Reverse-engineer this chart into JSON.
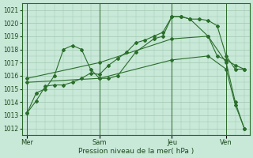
{
  "xlabel": "Pression niveau de la mer( hPa )",
  "ylim": [
    1011.5,
    1021.5
  ],
  "yticks": [
    1012,
    1013,
    1014,
    1015,
    1016,
    1017,
    1018,
    1019,
    1020,
    1021
  ],
  "bg_color": "#c8e8d8",
  "plot_bg_color": "#c8e8d8",
  "grid_color": "#a0c8b0",
  "line_color": "#2a6e2a",
  "xtick_labels": [
    "Mer",
    "Sam",
    "Jeu",
    "Ven"
  ],
  "xtick_positions": [
    0,
    4,
    8,
    11
  ],
  "xlim": [
    -0.3,
    12.3
  ],
  "lines": [
    {
      "x": [
        0,
        0.5,
        1,
        1.5,
        2,
        2.5,
        3,
        3.5,
        4,
        4.5,
        5,
        5.5,
        6,
        6.5,
        7,
        7.5,
        8,
        8.5,
        9,
        9.5,
        10,
        10.5,
        11,
        11.5,
        12
      ],
      "y": [
        1013.2,
        1014.1,
        1015.2,
        1015.3,
        1015.3,
        1015.5,
        1015.8,
        1016.2,
        1016.1,
        1016.8,
        1017.3,
        1017.8,
        1018.5,
        1018.7,
        1019.0,
        1019.3,
        1020.5,
        1020.5,
        1020.3,
        1020.3,
        1020.2,
        1019.8,
        1017.5,
        1016.5,
        1016.5
      ]
    },
    {
      "x": [
        0,
        0.5,
        1,
        1.5,
        2,
        2.5,
        3,
        3.5,
        4,
        4.5,
        5,
        6,
        7,
        7.5,
        8,
        8.5,
        9,
        10,
        10.5,
        11,
        11.5,
        12
      ],
      "y": [
        1013.2,
        1014.7,
        1015.0,
        1016.0,
        1018.0,
        1018.3,
        1018.0,
        1016.5,
        1015.8,
        1015.8,
        1016.0,
        1017.8,
        1018.8,
        1019.0,
        1020.5,
        1020.5,
        1020.3,
        1019.0,
        1017.5,
        1017.2,
        1016.8,
        1016.5
      ]
    },
    {
      "x": [
        0,
        4,
        8,
        10,
        11,
        11.5,
        12
      ],
      "y": [
        1015.8,
        1017.0,
        1018.8,
        1019.0,
        1017.0,
        1014.0,
        1012.0
      ]
    },
    {
      "x": [
        0,
        4,
        8,
        10,
        11,
        11.5,
        12
      ],
      "y": [
        1015.5,
        1015.8,
        1017.2,
        1017.5,
        1016.5,
        1013.8,
        1012.0
      ]
    }
  ]
}
